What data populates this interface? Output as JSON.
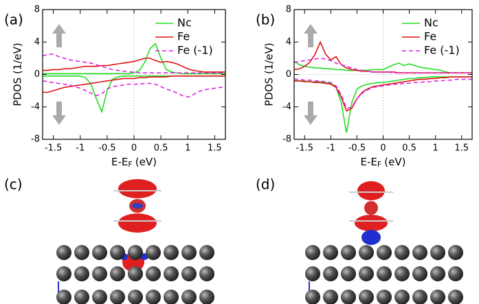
{
  "chart_data": [
    {
      "type": "line",
      "label": "(a)",
      "y_label": "PDOS (1/eV)",
      "x_label": {
        "main": "E-E",
        "sub": "F",
        "unit": "(eV)"
      },
      "xlim": [
        -1.7,
        1.7
      ],
      "ylim": [
        -8,
        8
      ],
      "xticks": [
        -1.5,
        -1,
        -0.5,
        0,
        0.5,
        1,
        1.5
      ],
      "yticks": [
        -8,
        -4,
        0,
        4,
        8
      ],
      "legend": "upper right",
      "x": [
        -1.7,
        -1.6,
        -1.5,
        -1.4,
        -1.3,
        -1.2,
        -1.1,
        -1.0,
        -0.9,
        -0.8,
        -0.7,
        -0.6,
        -0.5,
        -0.4,
        -0.3,
        -0.2,
        -0.1,
        0,
        0.1,
        0.2,
        0.3,
        0.4,
        0.5,
        0.6,
        0.7,
        0.8,
        0.9,
        1.0,
        1.1,
        1.2,
        1.3,
        1.4,
        1.5,
        1.6,
        1.7
      ],
      "series": [
        {
          "name": "Nc",
          "color": "#22dd22",
          "dash": false,
          "values": [
            0.1,
            0.1,
            0.1,
            0.1,
            0.1,
            0.1,
            0.1,
            0.1,
            0.1,
            0.1,
            0.1,
            0.1,
            0.1,
            0.1,
            0.1,
            0.1,
            0.1,
            0.2,
            0.5,
            1.5,
            3.2,
            3.8,
            2.0,
            0.6,
            0.3,
            0.2,
            0.1,
            0.1,
            0.1,
            0.1,
            0.1,
            0.1,
            0.1,
            0.1,
            0.1
          ]
        },
        {
          "name": "Fe",
          "color": "#e01010",
          "dash": false,
          "values": [
            0.5,
            0.5,
            0.6,
            0.6,
            0.7,
            0.7,
            0.8,
            0.9,
            1.0,
            1.0,
            1.0,
            1.1,
            1.1,
            1.2,
            1.3,
            1.4,
            1.5,
            1.6,
            1.8,
            2.0,
            2.0,
            1.7,
            1.5,
            1.6,
            1.5,
            1.3,
            1.0,
            0.7,
            0.5,
            0.4,
            0.3,
            0.3,
            0.3,
            0.3,
            0.3
          ]
        },
        {
          "name": "Fe (-1)",
          "color": "#e020e0",
          "dash": true,
          "values": [
            2.3,
            2.5,
            2.5,
            2.2,
            2.0,
            1.8,
            1.7,
            1.6,
            1.5,
            1.4,
            1.2,
            1.0,
            0.8,
            0.6,
            0.5,
            0.4,
            0.3,
            0.3,
            0.2,
            0.2,
            0.2,
            0.2,
            0.2,
            0.2,
            0.2,
            0.2,
            0.2,
            0.2,
            0.2,
            0.2,
            0.2,
            0.2,
            0.2,
            0.2,
            0.2
          ]
        },
        {
          "color": "#22dd22",
          "dash": false,
          "values": [
            -0.2,
            -0.2,
            -0.2,
            -0.2,
            -0.2,
            -0.2,
            -0.2,
            -0.2,
            -0.4,
            -1.2,
            -3.0,
            -4.6,
            -2.0,
            -0.6,
            -0.3,
            -0.2,
            -0.2,
            -0.2,
            -0.2,
            -0.2,
            -0.2,
            -0.2,
            -0.2,
            -0.2,
            -0.2,
            -0.2,
            -0.2,
            -0.2,
            -0.2,
            -0.2,
            -0.2,
            -0.2,
            -0.2,
            -0.2,
            -0.2
          ]
        },
        {
          "color": "#e01010",
          "dash": false,
          "values": [
            -2.2,
            -2.2,
            -2.0,
            -1.8,
            -1.6,
            -1.5,
            -1.4,
            -1.3,
            -1.2,
            -1.1,
            -1.0,
            -0.9,
            -0.8,
            -0.7,
            -0.6,
            -0.5,
            -0.5,
            -0.5,
            -0.4,
            -0.4,
            -0.3,
            -0.3,
            -0.3,
            -0.3,
            -0.2,
            -0.2,
            -0.2,
            -0.2,
            -0.2,
            -0.2,
            -0.2,
            -0.2,
            -0.2,
            -0.2,
            -0.2
          ]
        },
        {
          "color": "#e020e0",
          "dash": true,
          "values": [
            -0.8,
            -0.9,
            -1.0,
            -1.1,
            -1.2,
            -1.3,
            -1.5,
            -1.7,
            -2.0,
            -2.3,
            -2.6,
            -2.4,
            -1.8,
            -1.5,
            -1.4,
            -1.3,
            -1.2,
            -1.2,
            -1.2,
            -1.1,
            -1.1,
            -1.2,
            -1.5,
            -1.8,
            -2.0,
            -2.3,
            -2.6,
            -2.8,
            -2.5,
            -2.1,
            -1.9,
            -1.8,
            -1.7,
            -1.6,
            -1.5
          ]
        }
      ]
    },
    {
      "type": "line",
      "label": "(b)",
      "y_label": "PDOS (1/eV)",
      "x_label": {
        "main": "E-E",
        "sub": "F",
        "unit": "(eV)"
      },
      "xlim": [
        -1.7,
        1.7
      ],
      "ylim": [
        -8,
        8
      ],
      "xticks": [
        -1.5,
        -1,
        -0.5,
        0,
        0.5,
        1,
        1.5
      ],
      "yticks": [
        -8,
        -4,
        0,
        4,
        8
      ],
      "legend": "upper right",
      "x": [
        -1.7,
        -1.6,
        -1.5,
        -1.4,
        -1.3,
        -1.2,
        -1.1,
        -1.0,
        -0.9,
        -0.8,
        -0.7,
        -0.6,
        -0.5,
        -0.4,
        -0.3,
        -0.2,
        -0.1,
        0,
        0.1,
        0.2,
        0.3,
        0.4,
        0.5,
        0.6,
        0.7,
        0.8,
        0.9,
        1.0,
        1.1,
        1.2,
        1.3,
        1.4,
        1.5,
        1.6,
        1.7
      ],
      "series": [
        {
          "name": "Nc",
          "color": "#22dd22",
          "dash": false,
          "values": [
            1.6,
            1.2,
            1.0,
            0.9,
            0.8,
            0.8,
            0.7,
            0.7,
            0.6,
            0.6,
            0.5,
            0.5,
            0.5,
            0.5,
            0.5,
            0.6,
            0.6,
            0.6,
            0.9,
            1.2,
            1.4,
            1.1,
            1.3,
            1.1,
            0.9,
            0.8,
            0.7,
            0.6,
            0.5,
            0.3,
            0.2,
            0.2,
            0.2,
            0.2,
            0.2
          ]
        },
        {
          "name": "Fe",
          "color": "#e01010",
          "dash": false,
          "values": [
            0.6,
            0.7,
            1.0,
            1.5,
            2.5,
            4.0,
            2.5,
            1.8,
            2.2,
            1.2,
            0.8,
            0.6,
            0.5,
            0.4,
            0.4,
            0.3,
            0.3,
            0.3,
            0.3,
            0.3,
            0.2,
            0.2,
            0.2,
            0.2,
            0.2,
            0.2,
            0.2,
            0.2,
            0.2,
            0.2,
            0.2,
            0.2,
            0.2,
            0.2,
            0.2
          ]
        },
        {
          "name": "Fe (-1)",
          "color": "#e020e0",
          "dash": true,
          "values": [
            1.5,
            1.6,
            1.7,
            1.8,
            1.9,
            2.0,
            1.9,
            1.7,
            1.4,
            1.2,
            1.0,
            0.8,
            0.6,
            0.5,
            0.4,
            0.3,
            0.3,
            0.3,
            0.3,
            0.2,
            0.2,
            0.2,
            0.2,
            0.2,
            0.2,
            0.2,
            0.2,
            0.2,
            0.2,
            0.2,
            0.2,
            0.2,
            0.2,
            0.2,
            0.2
          ]
        },
        {
          "color": "#22dd22",
          "dash": false,
          "values": [
            -0.8,
            -0.8,
            -0.8,
            -0.9,
            -0.9,
            -0.9,
            -1.0,
            -1.1,
            -1.5,
            -3.5,
            -7.2,
            -3.5,
            -1.8,
            -1.4,
            -1.2,
            -1.1,
            -1.0,
            -1.0,
            -0.9,
            -0.8,
            -0.7,
            -0.6,
            -0.5,
            -0.5,
            -0.4,
            -0.4,
            -0.3,
            -0.3,
            -0.3,
            -0.3,
            -0.3,
            -0.3,
            -0.3,
            -0.3,
            -0.3
          ]
        },
        {
          "color": "#e01010",
          "dash": false,
          "values": [
            -0.8,
            -0.8,
            -0.9,
            -0.9,
            -1.0,
            -1.0,
            -1.1,
            -1.2,
            -1.6,
            -2.8,
            -4.5,
            -4.2,
            -3.0,
            -2.2,
            -1.8,
            -1.5,
            -1.4,
            -1.3,
            -1.2,
            -1.1,
            -1.0,
            -0.9,
            -0.8,
            -0.7,
            -0.6,
            -0.6,
            -0.5,
            -0.5,
            -0.4,
            -0.4,
            -0.3,
            -0.3,
            -0.3,
            -0.3,
            -0.3
          ]
        },
        {
          "color": "#e020e0",
          "dash": true,
          "values": [
            -0.6,
            -0.6,
            -0.7,
            -0.7,
            -0.8,
            -0.8,
            -0.9,
            -1.0,
            -1.4,
            -2.5,
            -4.2,
            -4.0,
            -3.0,
            -2.3,
            -1.9,
            -1.6,
            -1.5,
            -1.4,
            -1.3,
            -1.2,
            -1.2,
            -1.1,
            -1.1,
            -1.0,
            -1.0,
            -0.9,
            -0.9,
            -0.8,
            -0.8,
            -0.7,
            -0.7,
            -0.6,
            -0.6,
            -0.6,
            -0.6
          ]
        }
      ]
    }
  ],
  "panels": [
    "(c)",
    "(d)"
  ]
}
